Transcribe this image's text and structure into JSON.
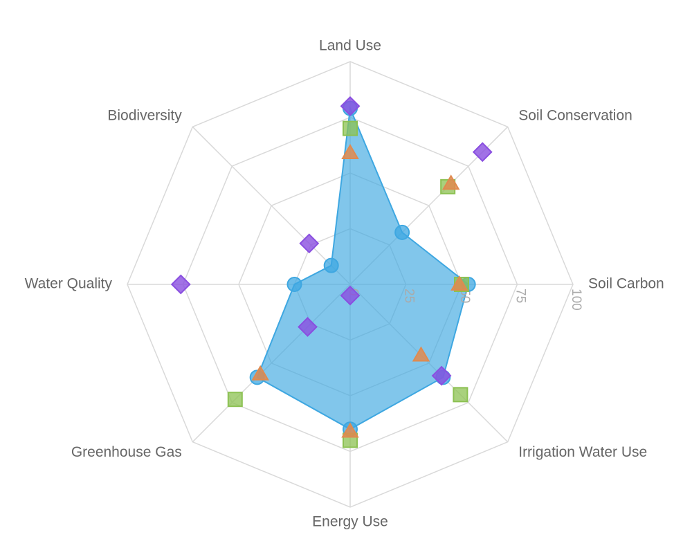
{
  "chart_data": {
    "type": "radar",
    "categories": [
      "Land Use",
      "Soil Conservation",
      "Soil Carbon",
      "Irrigation Water Use",
      "Energy Use",
      "Greenhouse Gas",
      "Water Quality",
      "Biodiversity"
    ],
    "rlim": [
      0,
      100
    ],
    "rticks": [
      0,
      25,
      50,
      75,
      100
    ],
    "grid": true,
    "series": [
      {
        "color": "#3ea7e1",
        "marker": "circle",
        "fill": true,
        "values": [
          79,
          33,
          53,
          59,
          65,
          59,
          25,
          12
        ]
      },
      {
        "color": "#8cc152",
        "marker": "square",
        "fill": false,
        "values": [
          70,
          62,
          50,
          70,
          70,
          73,
          null,
          null
        ]
      },
      {
        "color": "#e08a4f",
        "marker": "triangle",
        "fill": false,
        "values": [
          59,
          64,
          49,
          45,
          66,
          57,
          null,
          null
        ]
      },
      {
        "color": "#8a4fe0",
        "marker": "diamond",
        "fill": false,
        "values": [
          80,
          84,
          null,
          58,
          5,
          27,
          76,
          26
        ]
      }
    ]
  }
}
